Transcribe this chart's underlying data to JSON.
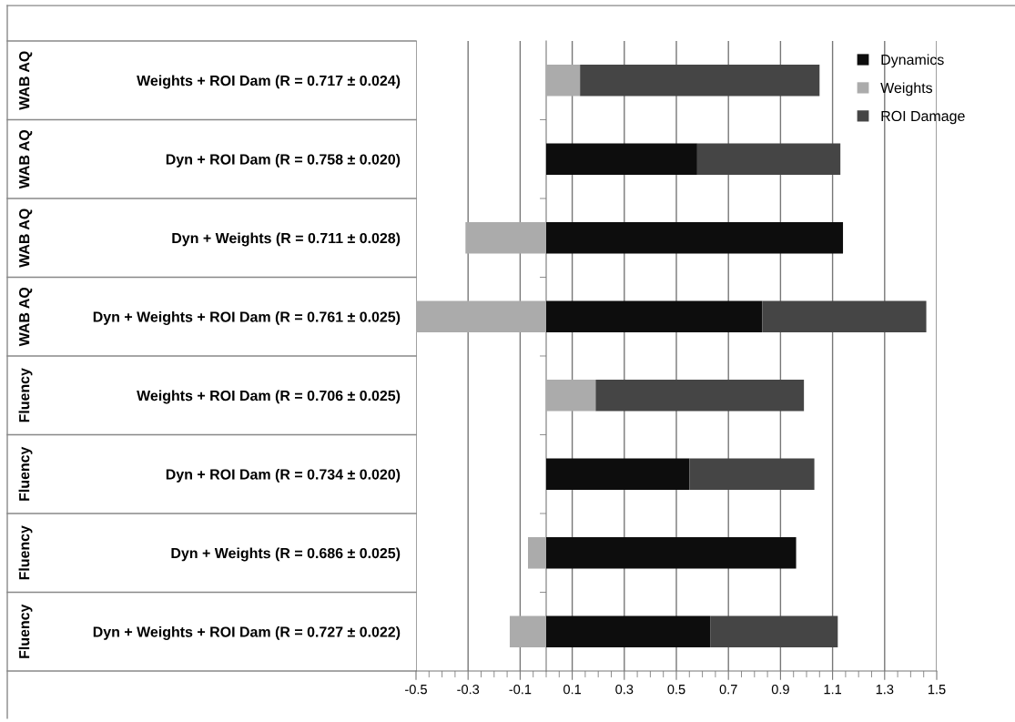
{
  "chart_data": {
    "type": "bar",
    "orientation": "horizontal",
    "stacked": true,
    "categories": [
      "Weights + ROI Dam (R = 0.717 ± 0.024)",
      "Dyn + ROI Dam (R = 0.758 ± 0.020)",
      "Dyn + Weights (R = 0.711 ± 0.028)",
      "Dyn + Weights + ROI Dam (R = 0.761 ± 0.025)",
      "Weights + ROI Dam (R = 0.706 ± 0.025)",
      "Dyn + ROI Dam (R = 0.734 ± 0.020)",
      "Dyn + Weights (R = 0.686 ± 0.025)",
      "Dyn + Weights + ROI Dam (R = 0.727 ± 0.022)"
    ],
    "annotations": [
      "WAB AQ",
      "WAB AQ",
      "WAB AQ",
      "WAB AQ",
      "Fluency",
      "Fluency",
      "Fluency",
      "Fluency"
    ],
    "series": [
      {
        "name": "Dynamics",
        "color": "#0d0d0d",
        "values": [
          null,
          0.58,
          1.14,
          0.83,
          null,
          0.55,
          0.96,
          0.63
        ]
      },
      {
        "name": "Weights",
        "color": "#ababab",
        "values": [
          0.13,
          null,
          -0.31,
          -0.5,
          0.19,
          null,
          -0.07,
          -0.14
        ]
      },
      {
        "name": "ROI Damage",
        "color": "#454545",
        "values": [
          0.92,
          0.55,
          null,
          0.63,
          0.8,
          0.48,
          null,
          0.49
        ]
      }
    ],
    "xlim": [
      -0.5,
      1.5
    ],
    "xticks": [
      -0.5,
      {
        "value": -0.45,
        "label": null
      },
      {
        "value": -0.4,
        "label": null
      },
      {
        "value": -0.35,
        "label": null
      },
      -0.3,
      {
        "value": -0.25,
        "label": null
      },
      {
        "value": -0.2,
        "label": null
      },
      {
        "value": -0.15,
        "label": null
      },
      -0.1,
      {
        "value": -0.05,
        "label": null
      },
      {
        "value": 0,
        "label": null
      },
      {
        "value": 0.05,
        "label": null
      },
      0.1,
      {
        "value": 0.15,
        "label": null
      },
      {
        "value": 0.2,
        "label": null
      },
      {
        "value": 0.25,
        "label": null
      },
      0.3,
      {
        "value": 0.35,
        "label": null
      },
      {
        "value": 0.4,
        "label": null
      },
      {
        "value": 0.45,
        "label": null
      },
      0.5,
      {
        "value": 0.55,
        "label": null
      },
      {
        "value": 0.6,
        "label": null
      },
      {
        "value": 0.65,
        "label": null
      },
      0.7,
      {
        "value": 0.75,
        "label": null
      },
      {
        "value": 0.8,
        "label": null
      },
      {
        "value": 0.85,
        "label": null
      },
      0.9,
      {
        "value": 0.95,
        "label": null
      },
      {
        "value": 1.0,
        "label": null
      },
      {
        "value": 1.05,
        "label": null
      },
      1.1,
      {
        "value": 1.15,
        "label": null
      },
      {
        "value": 1.2,
        "label": null
      },
      {
        "value": 1.25,
        "label": null
      },
      1.3,
      {
        "value": 1.35,
        "label": null
      },
      {
        "value": 1.4,
        "label": null
      },
      {
        "value": 1.45,
        "label": null
      },
      1.5
    ],
    "grid": "x",
    "legend": "top right"
  }
}
